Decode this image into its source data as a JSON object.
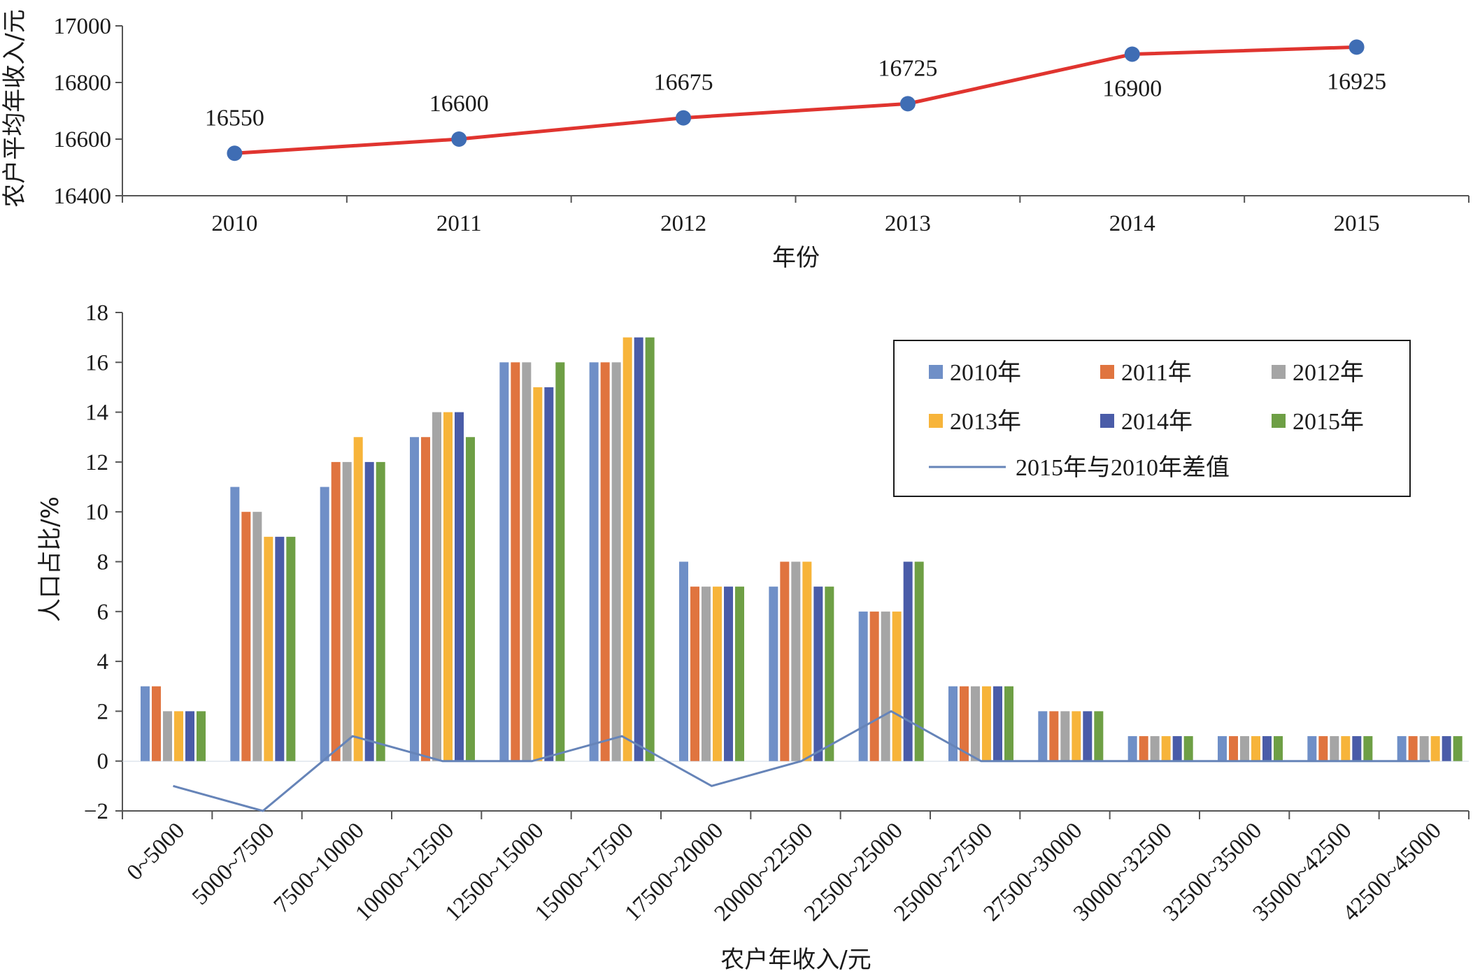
{
  "chart_data": [
    {
      "type": "line",
      "title": "",
      "xlabel": "年份",
      "ylabel": "农户平均年收入/元",
      "x": [
        "2010",
        "2011",
        "2012",
        "2013",
        "2014",
        "2015"
      ],
      "y": [
        16550,
        16600,
        16675,
        16725,
        16900,
        16925
      ],
      "data_labels": [
        "16550",
        "16600",
        "16675",
        "16725",
        "16900",
        "16925"
      ],
      "ylim": [
        16400,
        17000
      ],
      "yticks": [
        16400,
        16600,
        16800,
        17000
      ],
      "grid": false,
      "colors": {
        "line": "#e0342f",
        "marker": "#3f6db4"
      }
    },
    {
      "type": "bar",
      "title": "",
      "xlabel": "农户年收入/元",
      "ylabel": "人口占比/%",
      "categories": [
        "0~5000",
        "5000~7500",
        "7500~10000",
        "10000~12500",
        "12500~15000",
        "15000~17500",
        "17500~20000",
        "20000~22500",
        "22500~25000",
        "25000~27500",
        "27500~30000",
        "30000~32500",
        "32500~35000",
        "35000~42500",
        "42500~45000"
      ],
      "series": [
        {
          "name": "2010年",
          "color": "#6f8fc7",
          "values": [
            3,
            11,
            11,
            13,
            16,
            16,
            8,
            7,
            6,
            3,
            2,
            1,
            1,
            1,
            1
          ]
        },
        {
          "name": "2011年",
          "color": "#e0743f",
          "values": [
            3,
            10,
            12,
            13,
            16,
            16,
            7,
            8,
            6,
            3,
            2,
            1,
            1,
            1,
            1
          ]
        },
        {
          "name": "2012年",
          "color": "#a5a5a5",
          "values": [
            2,
            10,
            12,
            14,
            16,
            16,
            7,
            8,
            6,
            3,
            2,
            1,
            1,
            1,
            1
          ]
        },
        {
          "name": "2013年",
          "color": "#f7b43a",
          "values": [
            2,
            9,
            13,
            14,
            15,
            17,
            7,
            8,
            6,
            3,
            2,
            1,
            1,
            1,
            1
          ]
        },
        {
          "name": "2014年",
          "color": "#4a5ca8",
          "values": [
            2,
            9,
            12,
            14,
            15,
            17,
            7,
            7,
            8,
            3,
            2,
            1,
            1,
            1,
            1
          ]
        },
        {
          "name": "2015年",
          "color": "#6e9f45",
          "values": [
            2,
            9,
            12,
            13,
            16,
            17,
            7,
            7,
            8,
            3,
            2,
            1,
            1,
            1,
            1
          ]
        }
      ],
      "line_series": {
        "name": "2015年与2010年差值",
        "color": "#6684b8",
        "values": [
          -1,
          -2,
          1,
          0,
          0,
          1,
          -1,
          0,
          2,
          0,
          0,
          0,
          0,
          0,
          0
        ]
      },
      "ylim": [
        -2,
        18
      ],
      "yticks": [
        -2,
        0,
        2,
        4,
        6,
        8,
        10,
        12,
        14,
        16,
        18
      ],
      "ytick_labels": [
        "−2",
        "0",
        "2",
        "4",
        "6",
        "8",
        "10",
        "12",
        "14",
        "16",
        "18"
      ],
      "legend_position": "top-right",
      "grid": false
    }
  ]
}
